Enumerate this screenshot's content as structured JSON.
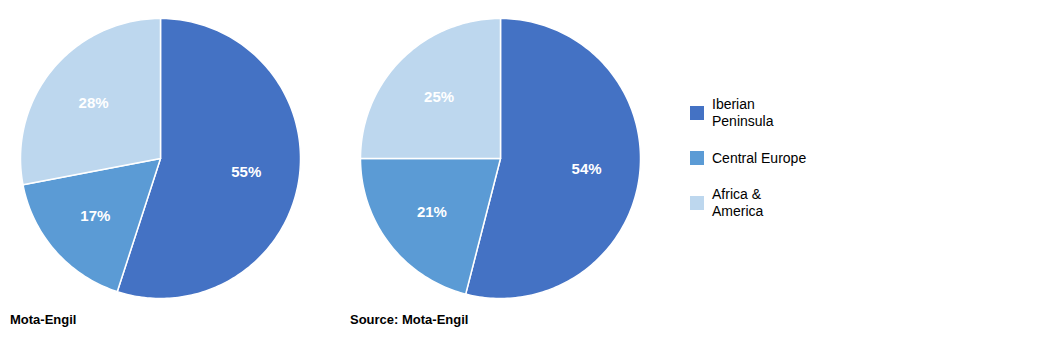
{
  "chart_data": [
    {
      "type": "pie",
      "categories": [
        "Iberian\nPeninsula",
        "Central Europe",
        "Africa &\nAmerica"
      ],
      "values": [
        55,
        17,
        28
      ],
      "value_labels": [
        "55%",
        "17%",
        "28%"
      ],
      "colors": [
        "#4472C4",
        "#5B9BD5",
        "#BDD7EE"
      ],
      "data_labels": true,
      "annotations": [
        "Mota-Engil"
      ]
    },
    {
      "type": "pie",
      "categories": [
        "Iberian\nPeninsula",
        "Central Europe",
        "Africa &\nAmerica"
      ],
      "values": [
        54,
        21,
        25
      ],
      "value_labels": [
        "54%",
        "21%",
        "25%"
      ],
      "colors": [
        "#4472C4",
        "#5B9BD5",
        "#BDD7EE"
      ],
      "data_labels": true,
      "annotations": [
        "Source: Mota-Engil"
      ],
      "legend": "right"
    }
  ]
}
